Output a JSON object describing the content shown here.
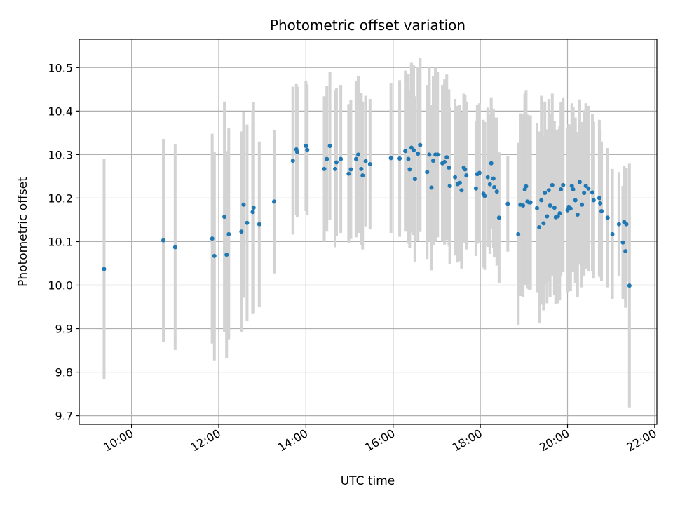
{
  "chart_data": {
    "type": "scatter",
    "title": "Photometric offset variation",
    "xlabel": "UTC time",
    "ylabel": "Photometric offset",
    "x_unit": "hours UTC",
    "xlim": [
      8.8,
      22.05
    ],
    "ylim": [
      9.68,
      10.565
    ],
    "x_ticks": [
      10,
      12,
      14,
      16,
      18,
      20,
      22
    ],
    "x_tick_labels": [
      "10:00",
      "12:00",
      "14:00",
      "16:00",
      "18:00",
      "20:00",
      "22:00"
    ],
    "y_ticks": [
      9.7,
      9.8,
      9.9,
      10.0,
      10.1,
      10.2,
      10.3,
      10.4,
      10.5
    ],
    "y_tick_labels": [
      "9.7",
      "9.8",
      "9.9",
      "10.0",
      "10.1",
      "10.2",
      "10.3",
      "10.4",
      "10.5"
    ],
    "grid": true,
    "point_color": "#1f77b4",
    "errorbar_color": "#d3d3d3",
    "series": [
      {
        "x": [
          9.37,
          10.73,
          11.0,
          11.85,
          11.9,
          12.13,
          12.18,
          12.23,
          12.52,
          12.57,
          12.65,
          12.78,
          12.8,
          12.93,
          13.27,
          13.7,
          13.78,
          13.8,
          14.0,
          14.03,
          14.42,
          14.48,
          14.55,
          14.67,
          14.7,
          14.8,
          14.98,
          15.03,
          15.15,
          15.2,
          15.27,
          15.3,
          15.37,
          15.47,
          15.95,
          16.15,
          16.28,
          16.35,
          16.38,
          16.42,
          16.47,
          16.5,
          16.57,
          16.62,
          16.78,
          16.83,
          16.88,
          16.92,
          16.97,
          17.02,
          17.13,
          17.18,
          17.23,
          17.28,
          17.3,
          17.42,
          17.48,
          17.53,
          17.57,
          17.62,
          17.65,
          17.68,
          17.9,
          17.93,
          17.98,
          18.07,
          18.1,
          18.17,
          18.22,
          18.25,
          18.3,
          18.32,
          18.38,
          18.43,
          18.63,
          18.87,
          18.92,
          18.98,
          19.02,
          19.05,
          19.08,
          19.12,
          19.15,
          19.3,
          19.35,
          19.4,
          19.45,
          19.48,
          19.53,
          19.57,
          19.6,
          19.65,
          19.7,
          19.73,
          19.78,
          19.82,
          19.85,
          19.9,
          20.0,
          20.03,
          20.07,
          20.1,
          20.13,
          20.18,
          20.23,
          20.28,
          20.33,
          20.38,
          20.42,
          20.48,
          20.57,
          20.6,
          20.73,
          20.75,
          20.78,
          20.92,
          21.03,
          21.18,
          21.27,
          21.3,
          21.33,
          21.35,
          21.42
        ],
        "y": [
          10.037,
          10.103,
          10.087,
          10.107,
          10.067,
          10.157,
          10.07,
          10.117,
          10.123,
          10.185,
          10.143,
          10.168,
          10.178,
          10.14,
          10.192,
          10.286,
          10.312,
          10.306,
          10.32,
          10.311,
          10.267,
          10.29,
          10.32,
          10.267,
          10.282,
          10.29,
          10.256,
          10.266,
          10.29,
          10.3,
          10.267,
          10.252,
          10.285,
          10.278,
          10.292,
          10.291,
          10.308,
          10.29,
          10.266,
          10.316,
          10.31,
          10.244,
          10.302,
          10.322,
          10.26,
          10.3,
          10.224,
          10.286,
          10.3,
          10.3,
          10.28,
          10.283,
          10.294,
          10.27,
          10.228,
          10.248,
          10.232,
          10.235,
          10.218,
          10.27,
          10.266,
          10.252,
          10.222,
          10.255,
          10.258,
          10.21,
          10.205,
          10.248,
          10.232,
          10.28,
          10.245,
          10.225,
          10.215,
          10.155,
          10.187,
          10.117,
          10.185,
          10.183,
          10.22,
          10.227,
          10.192,
          10.19,
          10.19,
          10.177,
          10.133,
          10.195,
          10.142,
          10.212,
          10.158,
          10.218,
          10.183,
          10.23,
          10.178,
          10.156,
          10.158,
          10.165,
          10.22,
          10.23,
          10.172,
          10.18,
          10.176,
          10.228,
          10.22,
          10.195,
          10.162,
          10.237,
          10.185,
          10.212,
          10.228,
          10.222,
          10.213,
          10.195,
          10.2,
          10.188,
          10.17,
          10.155,
          10.117,
          10.14,
          10.098,
          10.145,
          10.078,
          10.14,
          9.999
        ],
        "err": [
          0.253,
          0.233,
          0.236,
          0.241,
          0.24,
          0.265,
          0.238,
          0.243,
          0.23,
          0.214,
          0.226,
          0.233,
          0.242,
          0.19,
          0.165,
          0.17,
          0.15,
          0.15,
          0.15,
          0.15,
          0.167,
          0.167,
          0.17,
          0.18,
          0.17,
          0.17,
          0.16,
          0.16,
          0.18,
          0.18,
          0.175,
          0.17,
          0.15,
          0.15,
          0.172,
          0.18,
          0.185,
          0.195,
          0.18,
          0.195,
          0.195,
          0.19,
          0.2,
          0.2,
          0.2,
          0.2,
          0.19,
          0.195,
          0.2,
          0.19,
          0.18,
          0.19,
          0.19,
          0.18,
          0.18,
          0.18,
          0.18,
          0.18,
          0.18,
          0.17,
          0.17,
          0.17,
          0.155,
          0.16,
          0.16,
          0.17,
          0.17,
          0.16,
          0.16,
          0.15,
          0.16,
          0.16,
          0.17,
          0.15,
          0.11,
          0.21,
          0.21,
          0.21,
          0.22,
          0.22,
          0.2,
          0.2,
          0.2,
          0.195,
          0.22,
          0.24,
          0.2,
          0.21,
          0.2,
          0.21,
          0.21,
          0.21,
          0.2,
          0.2,
          0.2,
          0.2,
          0.2,
          0.2,
          0.19,
          0.19,
          0.19,
          0.19,
          0.19,
          0.19,
          0.19,
          0.19,
          0.19,
          0.19,
          0.19,
          0.19,
          0.18,
          0.18,
          0.18,
          0.17,
          0.16,
          0.16,
          0.15,
          0.12,
          0.13,
          0.13,
          0.13,
          0.13,
          0.28
        ]
      }
    ]
  }
}
